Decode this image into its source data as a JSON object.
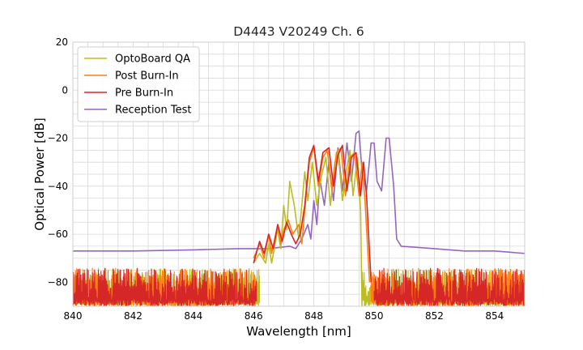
{
  "chart_data": {
    "type": "line",
    "title": "D4443 V20249 Ch. 6",
    "xlabel": "Wavelength [nm]",
    "ylabel": "Optical Power [dB]",
    "xlim": [
      840,
      855
    ],
    "ylim": [
      -90,
      20
    ],
    "x_ticks": [
      840,
      842,
      844,
      846,
      848,
      850,
      852,
      854
    ],
    "y_ticks": [
      -80,
      -60,
      -40,
      -20,
      0,
      20
    ],
    "x_tick_labels": [
      "840",
      "842",
      "844",
      "846",
      "848",
      "850",
      "852",
      "854"
    ],
    "y_tick_labels": [
      "−80",
      "−60",
      "−40",
      "−20",
      "0",
      "20"
    ],
    "grid": true,
    "legend_position": "top-left",
    "series": [
      {
        "name": "OptoBoard QA",
        "color": "#bcbd22",
        "noise_floor": {
          "x_ranges": [
            [
              840,
              846.2
            ],
            [
              849.6,
              855
            ]
          ],
          "min": -90,
          "max": -74
        },
        "points": [
          [
            846.0,
            -72
          ],
          [
            846.2,
            -68
          ],
          [
            846.4,
            -72
          ],
          [
            846.5,
            -64
          ],
          [
            846.6,
            -72
          ],
          [
            846.8,
            -58
          ],
          [
            846.9,
            -66
          ],
          [
            847.0,
            -48
          ],
          [
            847.1,
            -58
          ],
          [
            847.2,
            -38
          ],
          [
            847.35,
            -48
          ],
          [
            847.5,
            -62
          ],
          [
            847.6,
            -48
          ],
          [
            847.7,
            -34
          ],
          [
            847.8,
            -46
          ],
          [
            847.95,
            -30
          ],
          [
            848.1,
            -48
          ],
          [
            848.25,
            -36
          ],
          [
            848.4,
            -28
          ],
          [
            848.55,
            -48
          ],
          [
            848.7,
            -30
          ],
          [
            848.8,
            -25
          ],
          [
            848.95,
            -46
          ],
          [
            849.1,
            -32
          ],
          [
            849.2,
            -25
          ],
          [
            849.3,
            -44
          ],
          [
            849.45,
            -28
          ],
          [
            849.55,
            -50
          ],
          [
            849.6,
            -90
          ]
        ]
      },
      {
        "name": "Post Burn-In",
        "color": "#ff7f0e",
        "noise_floor": {
          "x_ranges": [
            [
              840,
              846.1
            ],
            [
              849.9,
              855
            ]
          ],
          "min": -90,
          "max": -74
        },
        "points": [
          [
            846.0,
            -70
          ],
          [
            846.2,
            -64
          ],
          [
            846.35,
            -70
          ],
          [
            846.5,
            -60
          ],
          [
            846.6,
            -68
          ],
          [
            846.8,
            -56
          ],
          [
            846.9,
            -64
          ],
          [
            847.0,
            -58
          ],
          [
            847.15,
            -54
          ],
          [
            847.3,
            -60
          ],
          [
            847.5,
            -56
          ],
          [
            847.6,
            -64
          ],
          [
            847.7,
            -50
          ],
          [
            847.85,
            -30
          ],
          [
            848.0,
            -24
          ],
          [
            848.15,
            -40
          ],
          [
            848.3,
            -28
          ],
          [
            848.45,
            -25
          ],
          [
            848.6,
            -42
          ],
          [
            848.75,
            -26
          ],
          [
            848.9,
            -24
          ],
          [
            849.05,
            -44
          ],
          [
            849.2,
            -28
          ],
          [
            849.35,
            -26
          ],
          [
            849.5,
            -44
          ],
          [
            849.6,
            -30
          ],
          [
            849.7,
            -46
          ],
          [
            849.85,
            -80
          ]
        ]
      },
      {
        "name": "Pre Burn-In",
        "color": "#d62728",
        "noise_floor": {
          "x_ranges": [
            [
              840,
              846.1
            ],
            [
              850.0,
              855
            ]
          ],
          "min": -90,
          "max": -74
        },
        "points": [
          [
            846.0,
            -72
          ],
          [
            846.2,
            -63
          ],
          [
            846.35,
            -68
          ],
          [
            846.5,
            -60
          ],
          [
            846.65,
            -66
          ],
          [
            846.8,
            -56
          ],
          [
            846.95,
            -63
          ],
          [
            847.1,
            -55
          ],
          [
            847.25,
            -60
          ],
          [
            847.4,
            -64
          ],
          [
            847.55,
            -60
          ],
          [
            847.7,
            -48
          ],
          [
            847.85,
            -28
          ],
          [
            848.0,
            -23
          ],
          [
            848.15,
            -38
          ],
          [
            848.3,
            -26
          ],
          [
            848.5,
            -24
          ],
          [
            848.65,
            -40
          ],
          [
            848.8,
            -27
          ],
          [
            848.95,
            -23
          ],
          [
            849.1,
            -42
          ],
          [
            849.25,
            -28
          ],
          [
            849.4,
            -26
          ],
          [
            849.55,
            -44
          ],
          [
            849.65,
            -30
          ],
          [
            849.75,
            -44
          ],
          [
            849.9,
            -80
          ]
        ]
      },
      {
        "name": "Reception Test",
        "color": "#9467bd",
        "points": [
          [
            840.0,
            -67
          ],
          [
            842.0,
            -67
          ],
          [
            844.0,
            -66.5
          ],
          [
            845.5,
            -66
          ],
          [
            846.5,
            -66
          ],
          [
            847.2,
            -65
          ],
          [
            847.4,
            -66
          ],
          [
            847.6,
            -62
          ],
          [
            847.8,
            -56
          ],
          [
            847.9,
            -62
          ],
          [
            848.0,
            -46
          ],
          [
            848.1,
            -56
          ],
          [
            848.2,
            -37
          ],
          [
            848.35,
            -48
          ],
          [
            848.5,
            -30
          ],
          [
            848.65,
            -46
          ],
          [
            848.8,
            -24
          ],
          [
            848.95,
            -42
          ],
          [
            849.1,
            -22
          ],
          [
            849.25,
            -38
          ],
          [
            849.4,
            -18
          ],
          [
            849.5,
            -17
          ],
          [
            849.6,
            -34
          ],
          [
            849.75,
            -42
          ],
          [
            849.9,
            -22
          ],
          [
            850.0,
            -22
          ],
          [
            850.1,
            -38
          ],
          [
            850.25,
            -42
          ],
          [
            850.4,
            -20
          ],
          [
            850.5,
            -20
          ],
          [
            850.65,
            -40
          ],
          [
            850.75,
            -62
          ],
          [
            850.9,
            -65
          ],
          [
            852.0,
            -66
          ],
          [
            853.0,
            -67
          ],
          [
            854.0,
            -67
          ],
          [
            855.0,
            -68
          ]
        ]
      }
    ]
  }
}
